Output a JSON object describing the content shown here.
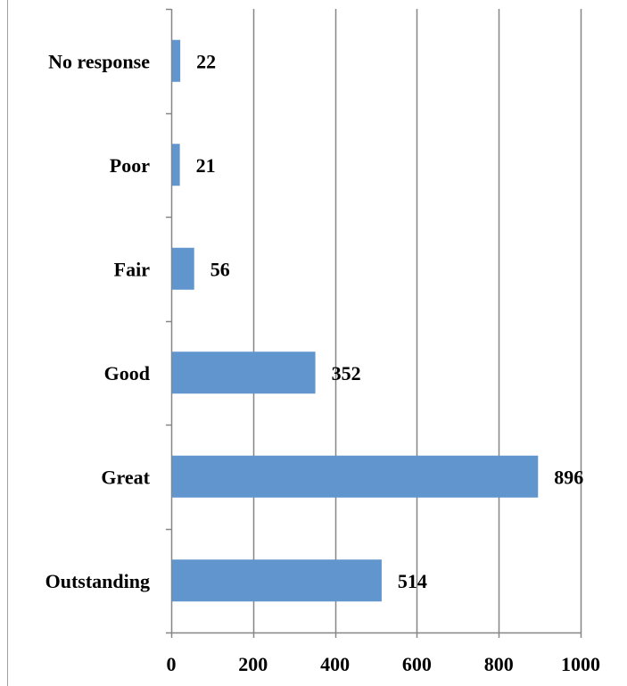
{
  "chart_data": {
    "type": "bar",
    "orientation": "horizontal",
    "categories": [
      "No response",
      "Poor",
      "Fair",
      "Good",
      "Great",
      "Outstanding"
    ],
    "values": [
      22,
      21,
      56,
      352,
      896,
      514
    ],
    "title": "",
    "xlabel": "",
    "ylabel": "",
    "xlim": [
      0,
      1000
    ],
    "x_ticks": [
      0,
      200,
      400,
      600,
      800,
      1000
    ],
    "grid": "vertical major gridlines",
    "legend": "none",
    "data_labels": true,
    "colors": {
      "bar": "#6096CD",
      "grid": "#868686",
      "axis": "#868686",
      "text": "#000000",
      "frame": "#A0A0A0"
    }
  }
}
